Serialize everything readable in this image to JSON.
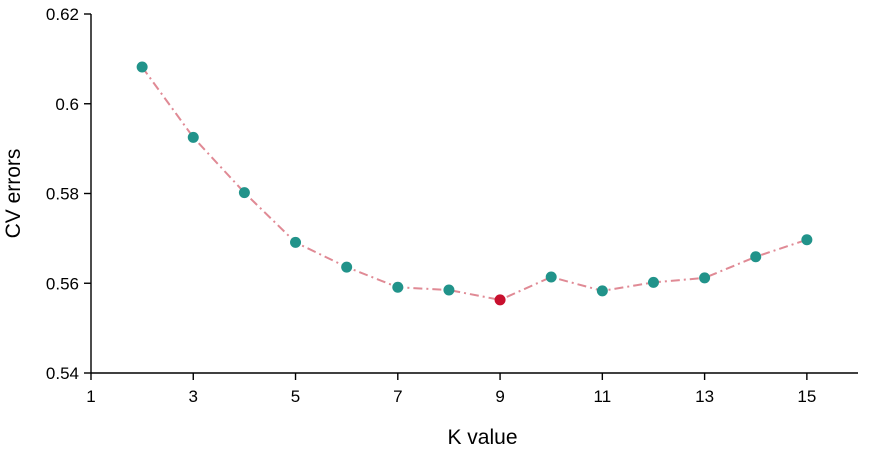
{
  "chart_data": {
    "type": "line",
    "title": "",
    "xlabel": "K value",
    "ylabel": "CV errors",
    "xlim": [
      1,
      16
    ],
    "ylim": [
      0.54,
      0.62
    ],
    "x_ticks": [
      1,
      3,
      5,
      7,
      9,
      11,
      13,
      15
    ],
    "x_tick_labels": [
      "1",
      "3",
      "5",
      "7",
      "9",
      "11",
      "13",
      "15"
    ],
    "y_ticks": [
      0.54,
      0.56,
      0.58,
      0.6,
      0.62
    ],
    "y_tick_labels": [
      "0.54",
      "0.56",
      "0.58",
      "0.6",
      "0.62"
    ],
    "grid": false,
    "series": [
      {
        "x": [
          2,
          3,
          4,
          5,
          6,
          7,
          8,
          9,
          10,
          11,
          12,
          13,
          14,
          15
        ],
        "values": [
          0.6082,
          0.5925,
          0.5802,
          0.5691,
          0.5636,
          0.5591,
          0.5585,
          0.5563,
          0.5614,
          0.5583,
          0.5602,
          0.5612,
          0.5659,
          0.5697
        ],
        "line_color": "#e08a95",
        "point_color": "#21938a"
      }
    ],
    "highlight": {
      "x": 9,
      "value": 0.5563,
      "color": "#c8102e"
    }
  }
}
